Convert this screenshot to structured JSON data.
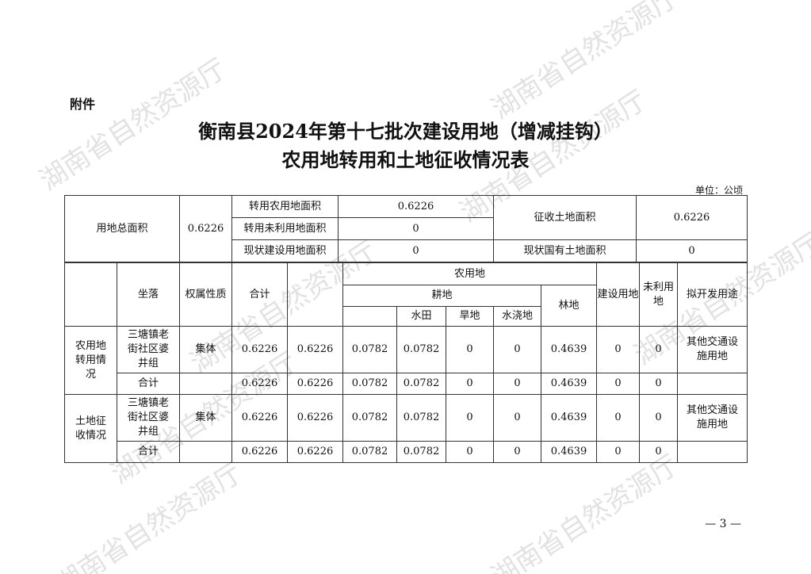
{
  "attachment_label": "附件",
  "title_line1": "衡南县2024年第十七批次建设用地（增减挂钩）",
  "title_line2": "农用地转用和土地征收情况表",
  "unit": "单位：公顷",
  "summary": {
    "total_label": "用地总面积",
    "total_value": "0.6226",
    "rows": [
      {
        "label": "转用农用地面积",
        "value": "0.6226"
      },
      {
        "label": "转用未利用地面积",
        "value": "0"
      },
      {
        "label": "现状建设用地面积",
        "value": "0"
      }
    ],
    "expropriation_label": "征收土地面积",
    "expropriation_value": "0.6226",
    "state_owned_label": "现状国有土地面积",
    "state_owned_value": "0"
  },
  "headers": {
    "location": "坐落",
    "ownership": "权属性质",
    "total": "合计",
    "farmland": "农用地",
    "cultivated": "耕地",
    "paddy": "水田",
    "dry": "旱地",
    "irrigated": "水浇地",
    "forest": "林地",
    "construction": "建设用地",
    "unused": "未利用地",
    "use": "拟开发用途"
  },
  "sections": [
    {
      "label": "农用地转用情况",
      "row": {
        "location": "三塘镇老街社区婆井组",
        "ownership": "集体",
        "values": [
          "0.6226",
          "0.6226",
          "0.0782",
          "0.0782",
          "0",
          "0",
          "0.4639",
          "0",
          "0"
        ],
        "use": "其他交通设施用地"
      },
      "subtotal": {
        "label": "合计",
        "values": [
          "0.6226",
          "0.6226",
          "0.0782",
          "0.0782",
          "0",
          "0",
          "0.4639",
          "0",
          "0"
        ]
      }
    },
    {
      "label": "土地征收情况",
      "row": {
        "location": "三塘镇老街社区婆井组",
        "ownership": "集体",
        "values": [
          "0.6226",
          "0.6226",
          "0.0782",
          "0.0782",
          "0",
          "0",
          "0.4639",
          "0",
          "0"
        ],
        "use": "其他交通设施用地"
      },
      "subtotal": {
        "label": "合计",
        "values": [
          "0.6226",
          "0.6226",
          "0.0782",
          "0.0782",
          "0",
          "0",
          "0.4639",
          "0",
          "0"
        ]
      }
    }
  ],
  "page_number": "— 3 —",
  "watermark": "湖南省自然资源厅"
}
